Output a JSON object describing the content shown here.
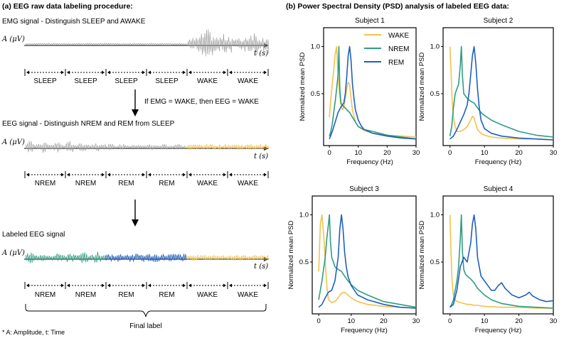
{
  "panel_a": {
    "title": "(a) EEG raw data labeling procedure:",
    "rows": [
      {
        "heading": "EMG signal - Distinguish SLEEP and AWAKE",
        "segments": [
          "SLEEP",
          "SLEEP",
          "SLEEP",
          "SLEEP",
          "WAKE",
          "WAKE"
        ]
      },
      {
        "heading": "EEG signal - Distinguish NREM and REM from SLEEP",
        "segments": [
          "NREM",
          "NREM",
          "REM",
          "REM",
          "WAKE",
          "WAKE"
        ]
      },
      {
        "heading": "Labeled EEG signal",
        "segments": [
          "NREM",
          "NREM",
          "REM",
          "REM",
          "WAKE",
          "WAKE"
        ]
      }
    ],
    "y_axis_label": "A (μV)",
    "x_axis_label": "t (s)",
    "rule_text": "If EMG = WAKE, then EEG = WAKE",
    "final_label": "Final label",
    "footnote": "* A: Amplitude, t: Time"
  },
  "panel_b": {
    "title": "(b) Power Spectral Density (PSD) analysis of labeled EEG data:"
  },
  "colors": {
    "WAKE": "#f3c24d",
    "NREM": "#2e9c82",
    "REM": "#1f5fbf",
    "EMG": "#9e9e9e"
  },
  "chart_data": {
    "type": "line",
    "title": "Power Spectral Density (PSD) analysis of labeled EEG data",
    "xlabel": "Frequency (Hz)",
    "ylabel": "Normalized mean PSD",
    "xlim": [
      -2,
      30
    ],
    "ylim": [
      -0.05,
      1.2
    ],
    "xticks": [
      0,
      10,
      20,
      30
    ],
    "yticks": [
      0.5,
      1.0
    ],
    "ytick_labels": [
      "0.5",
      "1.0"
    ],
    "legend": [
      "WAKE",
      "NREM",
      "REM"
    ],
    "legend_position": "top-right of Subject 1",
    "subplots": [
      {
        "title": "Subject 1",
        "series": [
          {
            "name": "WAKE",
            "x": [
              0,
              0.5,
              1,
              1.5,
              2,
              2.5,
              3,
              3.5,
              4,
              4.5,
              5,
              5.5,
              6,
              6.5,
              7,
              7.5,
              8,
              9,
              10,
              12,
              15,
              20,
              25,
              30
            ],
            "y": [
              0.25,
              0.45,
              0.6,
              0.75,
              0.92,
              1.0,
              0.7,
              0.5,
              0.38,
              0.33,
              0.35,
              0.45,
              0.55,
              0.62,
              0.6,
              0.45,
              0.33,
              0.2,
              0.15,
              0.11,
              0.08,
              0.06,
              0.05,
              0.04
            ]
          },
          {
            "name": "NREM",
            "x": [
              0,
              0.5,
              1,
              1.5,
              2,
              2.5,
              3,
              3.3,
              3.6,
              4,
              4.5,
              5,
              5.5,
              6,
              7,
              8,
              9,
              10,
              12,
              15,
              20,
              25,
              30
            ],
            "y": [
              0.05,
              0.1,
              0.18,
              0.3,
              0.42,
              0.55,
              0.7,
              1.0,
              0.55,
              0.4,
              0.38,
              0.36,
              0.35,
              0.33,
              0.3,
              0.25,
              0.2,
              0.15,
              0.12,
              0.1,
              0.06,
              0.04,
              0.02
            ]
          },
          {
            "name": "REM",
            "x": [
              0,
              1,
              2,
              3,
              4,
              4.5,
              5,
              5.5,
              6,
              6.5,
              7,
              7.5,
              8,
              8.5,
              9,
              10,
              11,
              12,
              15,
              20,
              25,
              30
            ],
            "y": [
              0.02,
              0.1,
              0.2,
              0.3,
              0.36,
              0.38,
              0.4,
              0.5,
              0.68,
              0.9,
              1.0,
              0.85,
              0.6,
              0.45,
              0.33,
              0.22,
              0.16,
              0.12,
              0.08,
              0.05,
              0.03,
              0.02
            ]
          }
        ]
      },
      {
        "title": "Subject 2",
        "series": [
          {
            "name": "WAKE",
            "x": [
              0,
              0.3,
              0.6,
              1,
              1.5,
              2,
              3,
              4,
              5,
              6,
              6.5,
              7,
              7.5,
              8,
              9,
              10,
              12,
              15,
              20,
              25,
              30
            ],
            "y": [
              1.0,
              0.75,
              0.45,
              0.25,
              0.15,
              0.1,
              0.1,
              0.12,
              0.15,
              0.22,
              0.26,
              0.24,
              0.18,
              0.12,
              0.08,
              0.06,
              0.04,
              0.03,
              0.02,
              0.02,
              0.01
            ]
          },
          {
            "name": "NREM",
            "x": [
              0,
              0.5,
              1,
              1.5,
              2,
              2.5,
              3,
              3.3,
              3.6,
              4,
              5,
              6,
              7,
              8,
              9,
              10,
              12,
              15,
              20,
              25,
              30
            ],
            "y": [
              0.05,
              0.15,
              0.35,
              0.5,
              0.55,
              0.6,
              0.8,
              1.0,
              0.7,
              0.5,
              0.45,
              0.42,
              0.4,
              0.35,
              0.3,
              0.27,
              0.22,
              0.17,
              0.1,
              0.06,
              0.04
            ]
          },
          {
            "name": "REM",
            "x": [
              0,
              1,
              2,
              3,
              4,
              5,
              5.5,
              6,
              6.5,
              7,
              7.5,
              8,
              8.5,
              9,
              10,
              12,
              15,
              20,
              25,
              30
            ],
            "y": [
              0.02,
              0.05,
              0.12,
              0.2,
              0.28,
              0.38,
              0.5,
              0.7,
              0.9,
              1.0,
              0.82,
              0.55,
              0.35,
              0.22,
              0.13,
              0.08,
              0.05,
              0.03,
              0.02,
              0.01
            ]
          }
        ]
      },
      {
        "title": "Subject 3",
        "series": [
          {
            "name": "WAKE",
            "x": [
              0,
              0.5,
              1,
              1.5,
              2,
              2.5,
              3,
              4,
              5,
              6,
              7,
              8,
              9,
              10,
              12,
              15,
              20,
              25,
              30
            ],
            "y": [
              0.4,
              0.9,
              1.0,
              0.8,
              0.5,
              0.25,
              0.1,
              0.07,
              0.08,
              0.12,
              0.17,
              0.18,
              0.15,
              0.12,
              0.08,
              0.05,
              0.03,
              0.02,
              0.01
            ]
          },
          {
            "name": "NREM",
            "x": [
              0,
              1,
              2,
              2.5,
              3,
              3.3,
              3.6,
              4,
              5,
              6,
              7,
              8,
              9,
              10,
              12,
              15,
              20,
              25,
              30
            ],
            "y": [
              0.1,
              0.3,
              0.55,
              0.75,
              0.9,
              1.0,
              0.72,
              0.55,
              0.45,
              0.42,
              0.4,
              0.35,
              0.3,
              0.26,
              0.2,
              0.15,
              0.08,
              0.05,
              0.02
            ]
          },
          {
            "name": "REM",
            "x": [
              0,
              1,
              2,
              3,
              4,
              5,
              6,
              6.5,
              7,
              7.5,
              8,
              8.5,
              9,
              10,
              11,
              12,
              15,
              20,
              25,
              30
            ],
            "y": [
              0.02,
              0.05,
              0.12,
              0.18,
              0.2,
              0.3,
              0.55,
              0.85,
              1.0,
              0.85,
              0.6,
              0.45,
              0.35,
              0.25,
              0.2,
              0.15,
              0.1,
              0.05,
              0.02,
              0.01
            ]
          }
        ]
      },
      {
        "title": "Subject 4",
        "series": [
          {
            "name": "WAKE",
            "x": [
              0,
              0.3,
              0.6,
              1,
              1.5,
              2,
              3,
              4,
              5,
              6,
              7,
              8,
              10,
              15,
              20,
              25,
              30
            ],
            "y": [
              1.0,
              0.6,
              0.3,
              0.15,
              0.1,
              0.08,
              0.07,
              0.06,
              0.05,
              0.05,
              0.04,
              0.04,
              0.03,
              0.02,
              0.02,
              0.01,
              0.01
            ]
          },
          {
            "name": "NREM",
            "x": [
              0,
              0.5,
              1,
              1.5,
              2,
              2.5,
              3,
              3.3,
              3.6,
              4,
              4.5,
              5,
              6,
              7,
              8,
              10,
              12,
              15,
              20,
              25,
              30
            ],
            "y": [
              0.02,
              0.05,
              0.1,
              0.2,
              0.3,
              0.45,
              0.75,
              1.0,
              0.62,
              0.42,
              0.37,
              0.35,
              0.32,
              0.28,
              0.22,
              0.15,
              0.1,
              0.06,
              0.03,
              0.02,
              0.01
            ]
          },
          {
            "name": "REM",
            "x": [
              0,
              1,
              2,
              3,
              4,
              5,
              6,
              6.5,
              7,
              7.5,
              8,
              9,
              10,
              11,
              12,
              13,
              14,
              15,
              16,
              18,
              20,
              22,
              23,
              24,
              26,
              28,
              30
            ],
            "y": [
              0.02,
              0.05,
              0.2,
              0.45,
              0.55,
              0.5,
              0.7,
              0.9,
              1.0,
              0.85,
              0.55,
              0.35,
              0.3,
              0.25,
              0.2,
              0.2,
              0.25,
              0.28,
              0.22,
              0.15,
              0.12,
              0.15,
              0.18,
              0.14,
              0.1,
              0.08,
              0.09
            ]
          }
        ]
      }
    ]
  }
}
